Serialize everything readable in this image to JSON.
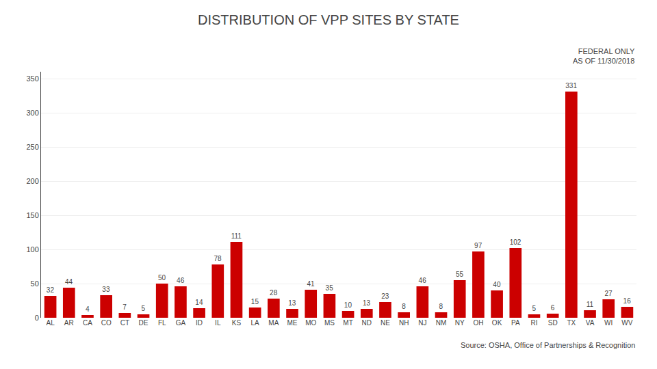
{
  "chart_data": {
    "type": "bar",
    "title": "DISTRIBUTION OF VPP SITES BY STATE",
    "subtitle": "FEDERAL ONLY\nAS OF 11/30/2018",
    "annotations": [
      "Source: OSHA, Office of Partnerships & Recognition"
    ],
    "categories": [
      "AL",
      "AR",
      "CA",
      "CO",
      "CT",
      "DE",
      "FL",
      "GA",
      "ID",
      "IL",
      "KS",
      "LA",
      "MA",
      "ME",
      "MO",
      "MS",
      "MT",
      "ND",
      "NE",
      "NH",
      "NJ",
      "NM",
      "NY",
      "OH",
      "OK",
      "PA",
      "RI",
      "SD",
      "TX",
      "VA",
      "WI",
      "WV"
    ],
    "values": [
      32,
      44,
      4,
      33,
      7,
      5,
      50,
      46,
      14,
      78,
      111,
      15,
      28,
      13,
      41,
      35,
      10,
      13,
      23,
      8,
      46,
      8,
      55,
      97,
      40,
      102,
      5,
      6,
      331,
      11,
      27,
      16
    ],
    "color": "#cc0000",
    "ylim": [
      0,
      360
    ],
    "yticks": [
      0,
      50,
      100,
      150,
      200,
      250,
      300,
      350
    ],
    "grid": true,
    "data_labels": true
  }
}
